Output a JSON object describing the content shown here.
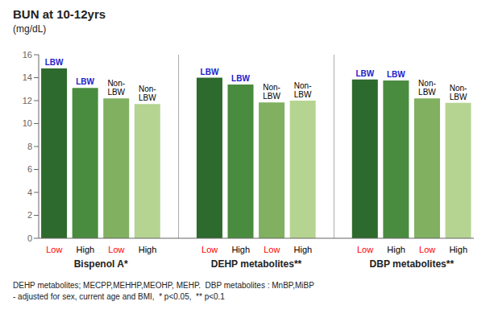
{
  "chart_data": {
    "type": "bar",
    "title": "BUN at 10-12yrs",
    "y_label": "(mg/dL)",
    "ylim": [
      0,
      16
    ],
    "yticks": [
      0,
      2,
      4,
      6,
      8,
      10,
      12,
      14,
      16
    ],
    "grid": false,
    "groups": [
      {
        "label": "Bispenol A*",
        "categories": [
          "Low",
          "High",
          "Low",
          "High"
        ],
        "tick_colors": [
          "red",
          "black",
          "red",
          "black"
        ],
        "values": [
          14.8,
          13.1,
          12.2,
          11.7
        ],
        "colors": [
          "#2d6a2d",
          "#4a8c3f",
          "#80b060",
          "#b5d491"
        ],
        "bar_labels": [
          "LBW",
          "LBW",
          "Non-\nLBW",
          "Non-\nLBW"
        ],
        "bar_label_colors": [
          "#2222cc",
          "#2222cc",
          "black",
          "black"
        ]
      },
      {
        "label": "DEHP metabolites**",
        "categories": [
          "Low",
          "High",
          "Low",
          "High"
        ],
        "tick_colors": [
          "red",
          "black",
          "red",
          "black"
        ],
        "values": [
          14.0,
          13.4,
          11.85,
          12.0
        ],
        "colors": [
          "#2d6a2d",
          "#4a8c3f",
          "#80b060",
          "#b5d491"
        ],
        "bar_labels": [
          "LBW",
          "LBW",
          "Non-\nLBW",
          "Non-\nLBW"
        ],
        "bar_label_colors": [
          "#2222cc",
          "#2222cc",
          "black",
          "black"
        ]
      },
      {
        "label": "DBP metabolites**",
        "categories": [
          "Low",
          "High",
          "Low",
          "High"
        ],
        "tick_colors": [
          "red",
          "black",
          "red",
          "black"
        ],
        "values": [
          13.85,
          13.75,
          12.2,
          11.8
        ],
        "colors": [
          "#2d6a2d",
          "#4a8c3f",
          "#80b060",
          "#b5d491"
        ],
        "bar_labels": [
          "LBW",
          "LBW",
          "Non-\nLBW",
          "Non-\nLBW"
        ],
        "bar_label_colors": [
          "#2222cc",
          "#2222cc",
          "black",
          "black"
        ]
      }
    ],
    "footnotes": [
      "DEHP metabolites; MECPP,MEHHP,MEOHP, MEHP.  DBP metabolites : MnBP,MiBP",
      "- adjusted for sex, current age and BMI,  * p<0.05,  ** p<0.1"
    ]
  }
}
